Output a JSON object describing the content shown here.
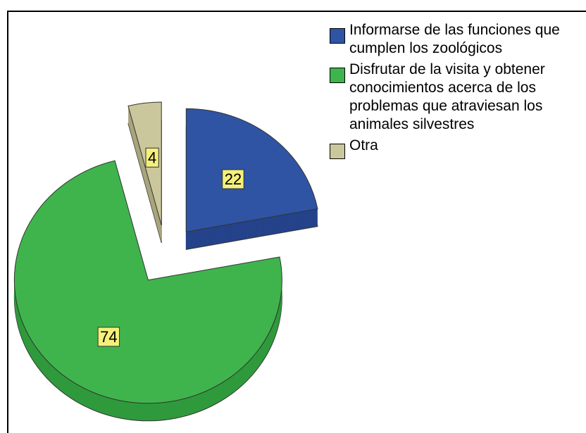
{
  "chart_data": {
    "type": "pie",
    "categories": [
      "Informarse de las funciones que cumplen los zoológicos",
      "Disfrutar de la visita y obtener conocimientos acerca de los problemas que atraviesan los animales silvestres",
      "Otra"
    ],
    "values": [
      22,
      74,
      4
    ],
    "colors": [
      "#2f54a3",
      "#3fb44c",
      "#cbc79c"
    ],
    "side_colors": [
      "#24438a",
      "#2f9a3c",
      "#a9a57c"
    ],
    "legend": "upper right"
  }
}
